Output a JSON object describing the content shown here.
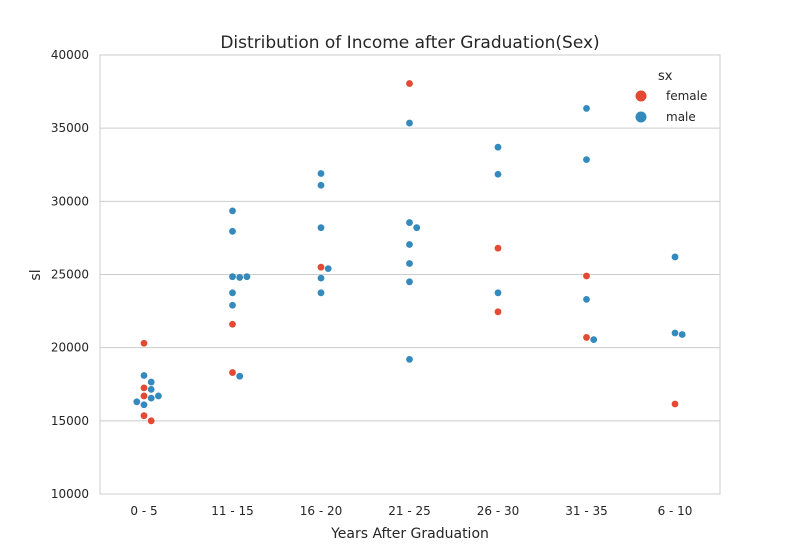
{
  "chart_data": {
    "type": "scatter",
    "title": "Distribution of Income after Graduation(Sex)",
    "xlabel": "Years After Graduation",
    "ylabel": "sl",
    "categories": [
      "0 - 5",
      "11 - 15",
      "16 - 20",
      "21 - 25",
      "26 - 30",
      "31 - 35",
      "6 - 10"
    ],
    "ylim": [
      10000,
      40000
    ],
    "yticks": [
      10000,
      15000,
      20000,
      25000,
      30000,
      35000,
      40000
    ],
    "grid": "horizontal",
    "legend": {
      "title": "sx",
      "placement": "top-right",
      "entries": [
        {
          "name": "female",
          "color": "#E24A33"
        },
        {
          "name": "male",
          "color": "#348ABD"
        }
      ]
    },
    "series": [
      {
        "name": "female",
        "color": "#E24A33",
        "points": [
          {
            "category": "0 - 5",
            "y": 20300
          },
          {
            "category": "0 - 5",
            "y": 17250
          },
          {
            "category": "0 - 5",
            "y": 16700
          },
          {
            "category": "0 - 5",
            "y": 15350
          },
          {
            "category": "0 - 5",
            "y": 15000
          },
          {
            "category": "11 - 15",
            "y": 21600
          },
          {
            "category": "11 - 15",
            "y": 18300
          },
          {
            "category": "16 - 20",
            "y": 25500
          },
          {
            "category": "21 - 25",
            "y": 38050
          },
          {
            "category": "26 - 30",
            "y": 26800
          },
          {
            "category": "26 - 30",
            "y": 22450
          },
          {
            "category": "31 - 35",
            "y": 24900
          },
          {
            "category": "31 - 35",
            "y": 20700
          },
          {
            "category": "6 - 10",
            "y": 16150
          }
        ]
      },
      {
        "name": "male",
        "color": "#348ABD",
        "points": [
          {
            "category": "0 - 5",
            "y": 18100
          },
          {
            "category": "0 - 5",
            "y": 17650
          },
          {
            "category": "0 - 5",
            "y": 17150
          },
          {
            "category": "0 - 5",
            "y": 16700
          },
          {
            "category": "0 - 5",
            "y": 16550
          },
          {
            "category": "0 - 5",
            "y": 16300
          },
          {
            "category": "0 - 5",
            "y": 16100
          },
          {
            "category": "11 - 15",
            "y": 29350
          },
          {
            "category": "11 - 15",
            "y": 27950
          },
          {
            "category": "11 - 15",
            "y": 24850
          },
          {
            "category": "11 - 15",
            "y": 24800
          },
          {
            "category": "11 - 15",
            "y": 24850
          },
          {
            "category": "11 - 15",
            "y": 23750
          },
          {
            "category": "11 - 15",
            "y": 22900
          },
          {
            "category": "11 - 15",
            "y": 18050
          },
          {
            "category": "16 - 20",
            "y": 31900
          },
          {
            "category": "16 - 20",
            "y": 31100
          },
          {
            "category": "16 - 20",
            "y": 28200
          },
          {
            "category": "16 - 20",
            "y": 25400
          },
          {
            "category": "16 - 20",
            "y": 24750
          },
          {
            "category": "16 - 20",
            "y": 23750
          },
          {
            "category": "21 - 25",
            "y": 35350
          },
          {
            "category": "21 - 25",
            "y": 28550
          },
          {
            "category": "21 - 25",
            "y": 28200
          },
          {
            "category": "21 - 25",
            "y": 27050
          },
          {
            "category": "21 - 25",
            "y": 25750
          },
          {
            "category": "21 - 25",
            "y": 24500
          },
          {
            "category": "21 - 25",
            "y": 19200
          },
          {
            "category": "26 - 30",
            "y": 33700
          },
          {
            "category": "26 - 30",
            "y": 31850
          },
          {
            "category": "26 - 30",
            "y": 23750
          },
          {
            "category": "31 - 35",
            "y": 36350
          },
          {
            "category": "31 - 35",
            "y": 32850
          },
          {
            "category": "31 - 35",
            "y": 23300
          },
          {
            "category": "31 - 35",
            "y": 20550
          },
          {
            "category": "6 - 10",
            "y": 26200
          },
          {
            "category": "6 - 10",
            "y": 21000
          },
          {
            "category": "6 - 10",
            "y": 20900
          }
        ]
      }
    ]
  }
}
